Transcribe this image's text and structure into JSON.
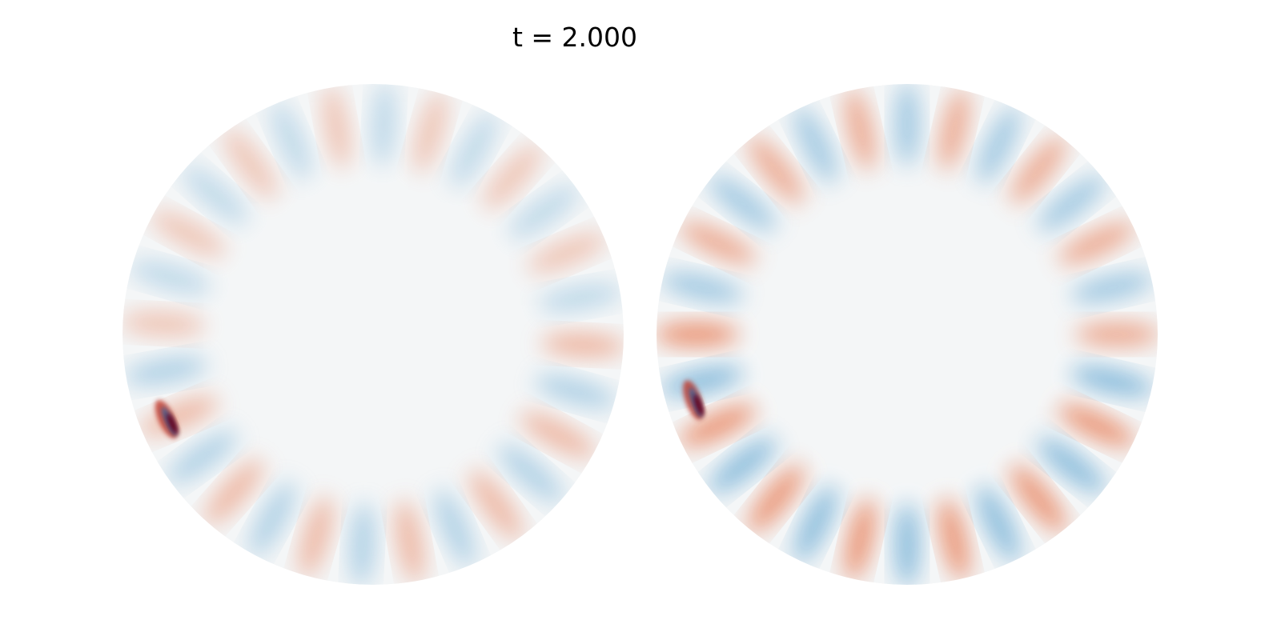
{
  "title": "t = 2.000"
}
